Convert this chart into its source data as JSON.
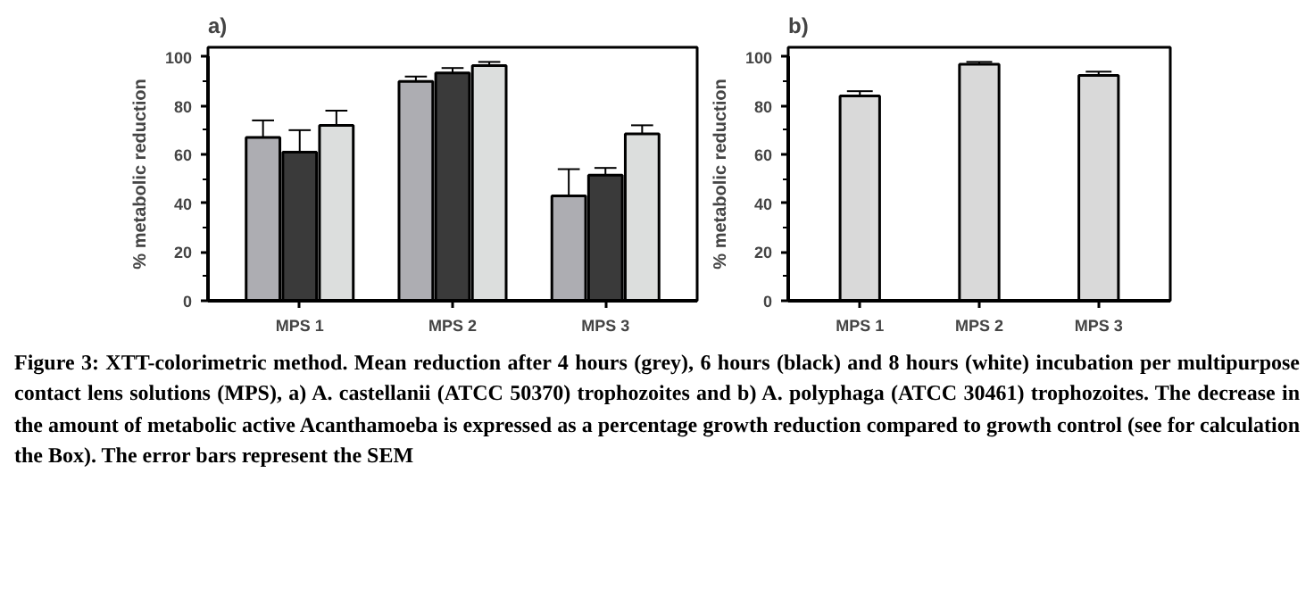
{
  "chart_data": [
    {
      "type": "bar",
      "title": "a)",
      "ylabel": "% metabolic reduction",
      "categories": [
        "MPS 1",
        "MPS 2",
        "MPS 3"
      ],
      "series": [
        {
          "color": "#adadb2",
          "values": [
            67,
            90,
            43
          ],
          "errors": [
            [
              67,
              74
            ],
            [
              90,
              92
            ],
            [
              43,
              54
            ]
          ]
        },
        {
          "color": "#3a3a3a",
          "values": [
            61,
            93.5,
            51.5
          ],
          "errors": [
            [
              61,
              70
            ],
            [
              93.5,
              95.5
            ],
            [
              51.5,
              54.5
            ]
          ]
        },
        {
          "color": "#dcdedd",
          "values": [
            72,
            96.5,
            68.5
          ],
          "errors": [
            [
              72,
              78
            ],
            [
              96.5,
              98
            ],
            [
              68.5,
              72
            ]
          ]
        }
      ],
      "ylim": [
        0,
        100
      ],
      "yticks": [
        0,
        20,
        40,
        60,
        80,
        100
      ],
      "grid": false,
      "annotations": [
        "Figure 3: XTT-colorimetric method. Mean reduction after 4 hours (grey), 6 hours (black) and 8 hours (white) incubation per multipurpose contact lens solutions (MPS), a) A. castellanii (ATCC 50370) trophozoites and b) A. polyphaga (ATCC 30461) trophozoites. The decrease in the amount of metabolic active Acanthamoeba is expressed as a percentage growth reduction compared to growth control (see for calculation the Box). The error bars represent the SEM"
      ]
    },
    {
      "type": "bar",
      "title": "b)",
      "ylabel": "% metabolic reduction",
      "categories": [
        "MPS 1",
        "MPS 2",
        "MPS 3"
      ],
      "series": [
        {
          "color": "#d9d9d9",
          "values": [
            84,
            97,
            92.5
          ],
          "errors": [
            [
              84,
              86
            ],
            [
              97,
              98
            ],
            [
              92.5,
              94
            ]
          ]
        }
      ],
      "ylim": [
        0,
        100
      ],
      "yticks": [
        0,
        20,
        40,
        60,
        80,
        100
      ],
      "grid": false
    }
  ]
}
